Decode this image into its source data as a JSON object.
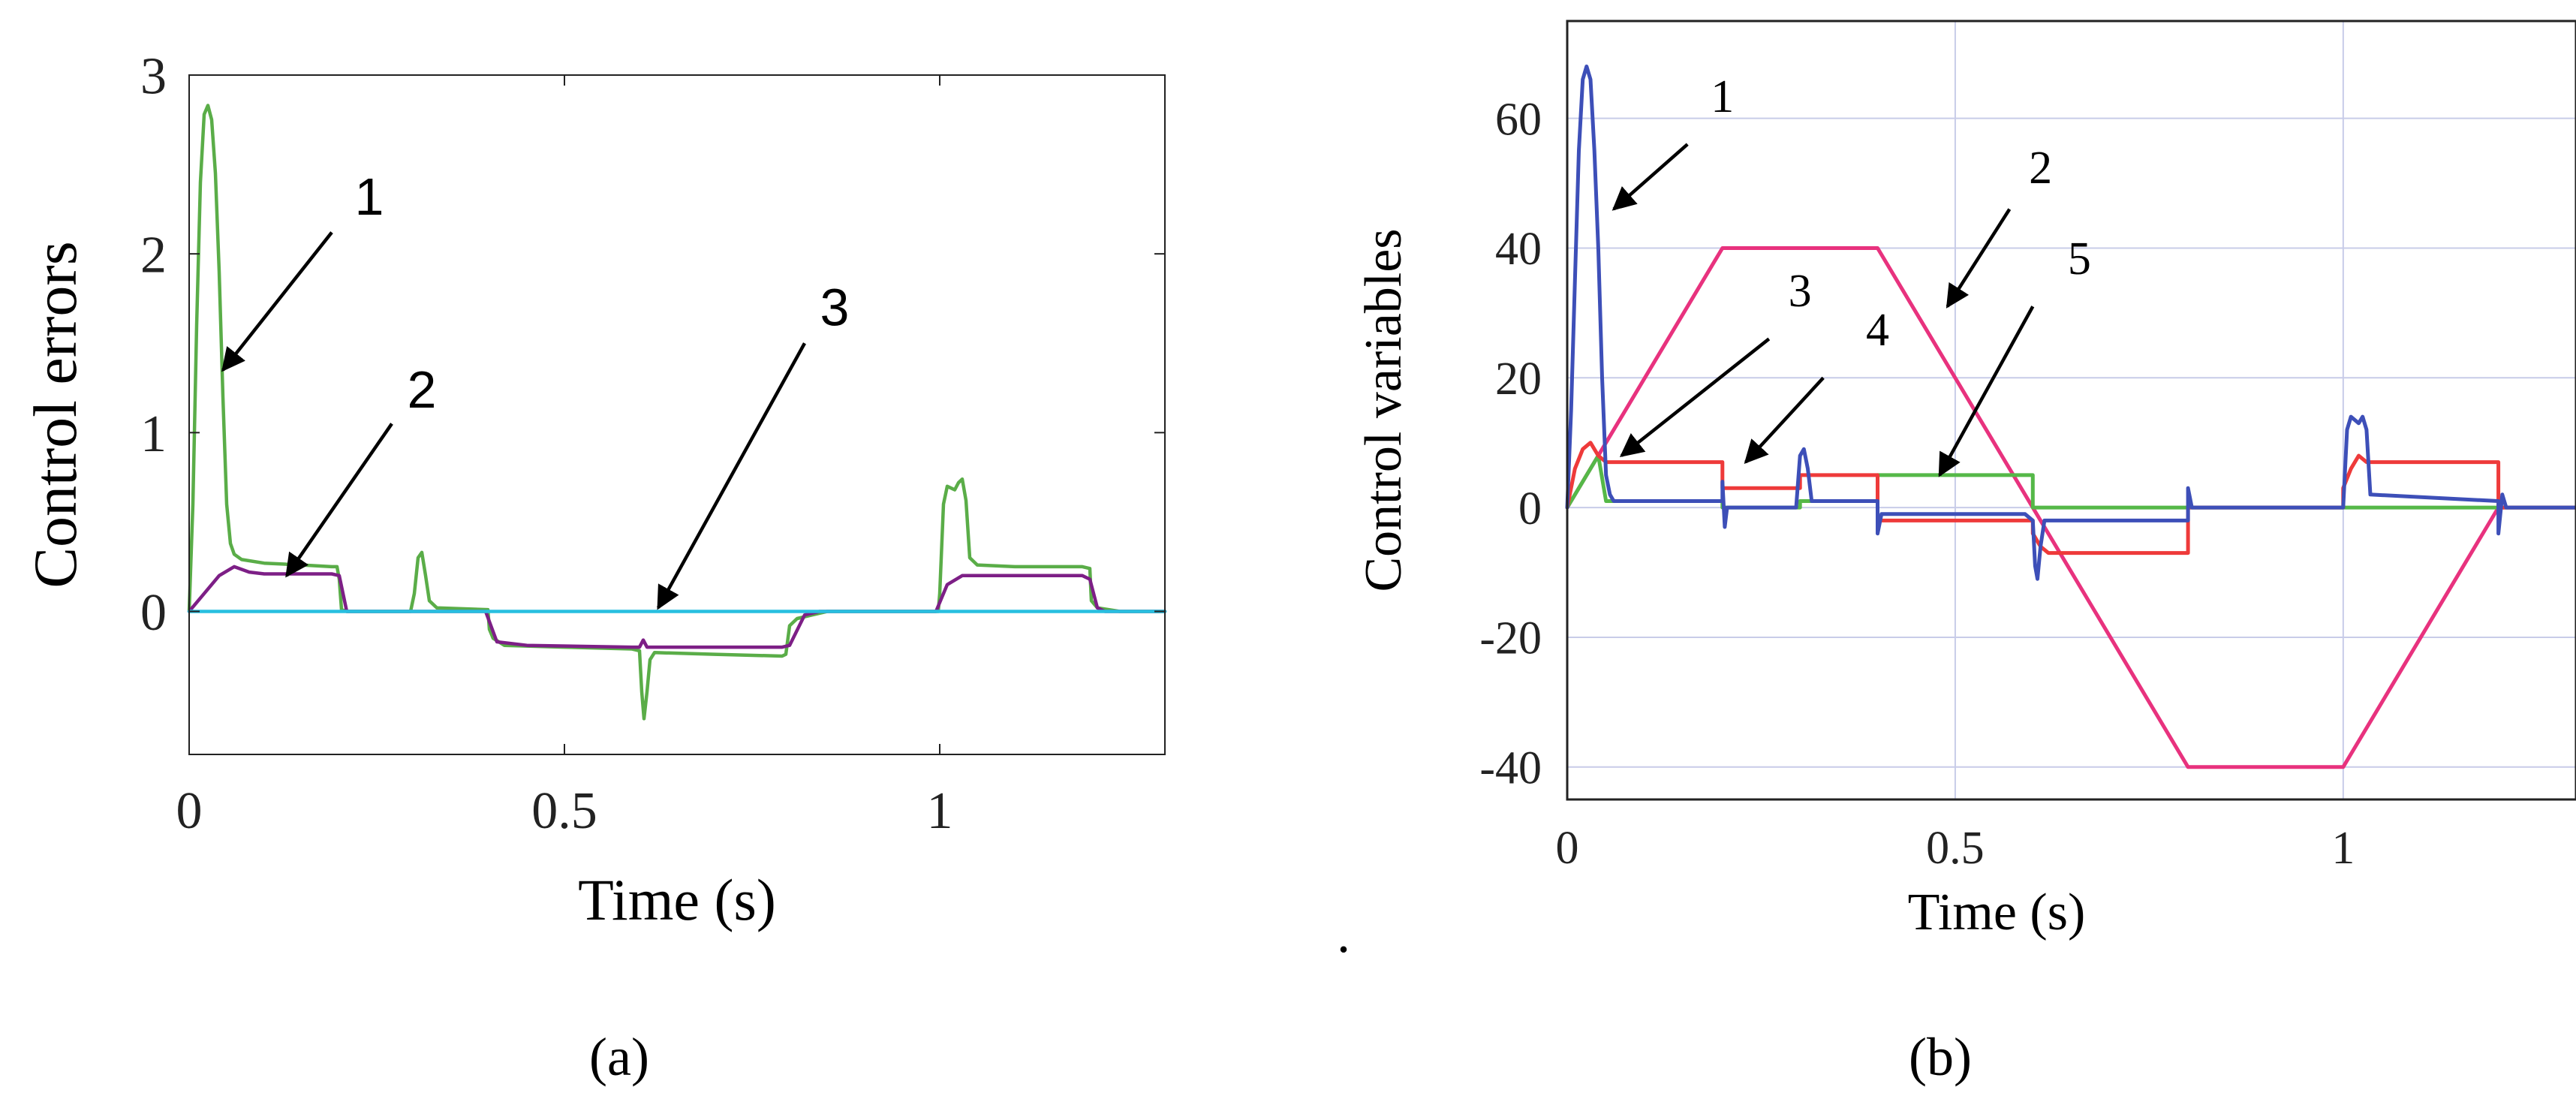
{
  "colors": {
    "green": "#5aad48",
    "purple": "#7d1f86",
    "cyan": "#28bfe0",
    "blue_a": "#3a5fc8",
    "blue_b": "#3d4fb8",
    "red": "#ee3a3a",
    "green_b": "#55b848",
    "magenta": "#e8327e",
    "grid_b": "#c8cce8",
    "frame": "#222222"
  },
  "chart_data": [
    {
      "panel": "a",
      "type": "line",
      "panel_label": "(a)",
      "xlabel": "Time (s)",
      "ylabel": "Control errors",
      "xlim": [
        0,
        1.3
      ],
      "ylim": [
        -0.8,
        3
      ],
      "x_ticks": [
        {
          "value": 0,
          "label": "0"
        },
        {
          "value": 0.5,
          "label": "0.5"
        },
        {
          "value": 1,
          "label": "1"
        }
      ],
      "y_ticks": [
        {
          "value": 0,
          "label": "0"
        },
        {
          "value": 1,
          "label": "1"
        },
        {
          "value": 2,
          "label": "2"
        },
        {
          "value": 3,
          "label": "3"
        }
      ],
      "grid": false,
      "series": [
        {
          "color": "#5aad48",
          "points": [
            [
              0,
              0
            ],
            [
              0.005,
              0.6
            ],
            [
              0.01,
              1.6
            ],
            [
              0.015,
              2.4
            ],
            [
              0.02,
              2.78
            ],
            [
              0.025,
              2.83
            ],
            [
              0.03,
              2.75
            ],
            [
              0.035,
              2.45
            ],
            [
              0.04,
              1.9
            ],
            [
              0.045,
              1.2
            ],
            [
              0.05,
              0.6
            ],
            [
              0.055,
              0.38
            ],
            [
              0.06,
              0.32
            ],
            [
              0.07,
              0.29
            ],
            [
              0.1,
              0.27
            ],
            [
              0.15,
              0.26
            ],
            [
              0.19,
              0.25
            ],
            [
              0.197,
              0.25
            ],
            [
              0.2,
              0.18
            ],
            [
              0.203,
              0.01
            ],
            [
              0.21,
              0
            ],
            [
              0.295,
              0
            ],
            [
              0.3,
              0.1
            ],
            [
              0.305,
              0.3
            ],
            [
              0.31,
              0.33
            ],
            [
              0.315,
              0.2
            ],
            [
              0.32,
              0.06
            ],
            [
              0.33,
              0.02
            ],
            [
              0.398,
              0.01
            ],
            [
              0.4,
              -0.1
            ],
            [
              0.405,
              -0.15
            ],
            [
              0.42,
              -0.19
            ],
            [
              0.5,
              -0.2
            ],
            [
              0.59,
              -0.21
            ],
            [
              0.6,
              -0.22
            ],
            [
              0.603,
              -0.45
            ],
            [
              0.606,
              -0.6
            ],
            [
              0.61,
              -0.45
            ],
            [
              0.614,
              -0.27
            ],
            [
              0.62,
              -0.23
            ],
            [
              0.7,
              -0.24
            ],
            [
              0.79,
              -0.25
            ],
            [
              0.795,
              -0.24
            ],
            [
              0.8,
              -0.08
            ],
            [
              0.81,
              -0.04
            ],
            [
              0.83,
              -0.02
            ],
            [
              0.85,
              0
            ],
            [
              0.998,
              0
            ],
            [
              1,
              0.1
            ],
            [
              1.005,
              0.6
            ],
            [
              1.01,
              0.7
            ],
            [
              1.02,
              0.68
            ],
            [
              1.025,
              0.72
            ],
            [
              1.03,
              0.74
            ],
            [
              1.035,
              0.62
            ],
            [
              1.04,
              0.3
            ],
            [
              1.05,
              0.26
            ],
            [
              1.1,
              0.25
            ],
            [
              1.19,
              0.25
            ],
            [
              1.2,
              0.24
            ],
            [
              1.202,
              0.06
            ],
            [
              1.21,
              0.02
            ],
            [
              1.24,
              0
            ],
            [
              1.3,
              0
            ]
          ]
        },
        {
          "color": "#7d1f86",
          "points": [
            [
              0,
              0
            ],
            [
              0.02,
              0.1
            ],
            [
              0.04,
              0.2
            ],
            [
              0.06,
              0.25
            ],
            [
              0.08,
              0.22
            ],
            [
              0.1,
              0.21
            ],
            [
              0.19,
              0.21
            ],
            [
              0.2,
              0.2
            ],
            [
              0.21,
              0
            ],
            [
              0.395,
              0
            ],
            [
              0.41,
              -0.17
            ],
            [
              0.45,
              -0.19
            ],
            [
              0.59,
              -0.2
            ],
            [
              0.6,
              -0.2
            ],
            [
              0.605,
              -0.16
            ],
            [
              0.61,
              -0.2
            ],
            [
              0.79,
              -0.2
            ],
            [
              0.8,
              -0.19
            ],
            [
              0.82,
              -0.02
            ],
            [
              0.84,
              0
            ],
            [
              0.995,
              0
            ],
            [
              1.01,
              0.15
            ],
            [
              1.03,
              0.2
            ],
            [
              1.19,
              0.2
            ],
            [
              1.2,
              0.18
            ],
            [
              1.21,
              0.02
            ],
            [
              1.22,
              0
            ],
            [
              1.3,
              0
            ]
          ]
        },
        {
          "color": "#28bfe0",
          "points": [
            [
              0,
              0
            ],
            [
              1.3,
              0
            ]
          ]
        }
      ],
      "annotations": [
        {
          "text": "1",
          "label_at": [
            0.24,
            2.22
          ],
          "arrow_from": [
            0.19,
            2.12
          ],
          "arrow_to": [
            0.045,
            1.35
          ]
        },
        {
          "text": "2",
          "label_at": [
            0.31,
            1.14
          ],
          "arrow_from": [
            0.27,
            1.05
          ],
          "arrow_to": [
            0.13,
            0.2
          ]
        },
        {
          "text": "3",
          "label_at": [
            0.86,
            1.6
          ],
          "arrow_from": [
            0.82,
            1.5
          ],
          "arrow_to": [
            0.625,
            0.02
          ]
        }
      ]
    },
    {
      "panel": "b",
      "type": "line",
      "panel_label": "(b)",
      "xlabel": "Time (s)",
      "ylabel": "Control variables",
      "xlim": [
        0,
        1.3
      ],
      "ylim": [
        -45,
        75
      ],
      "x_ticks": [
        {
          "value": 0,
          "label": "0"
        },
        {
          "value": 0.5,
          "label": "0.5"
        },
        {
          "value": 1,
          "label": "1"
        }
      ],
      "y_ticks": [
        {
          "value": -40,
          "label": "-40"
        },
        {
          "value": -20,
          "label": "-20"
        },
        {
          "value": 0,
          "label": "0"
        },
        {
          "value": 20,
          "label": "20"
        },
        {
          "value": 40,
          "label": "40"
        },
        {
          "value": 60,
          "label": "60"
        }
      ],
      "grid": true,
      "series": [
        {
          "color": "#e8327e",
          "points": [
            [
              0,
              0
            ],
            [
              0.2,
              40
            ],
            [
              0.4,
              40
            ],
            [
              0.8,
              -40
            ],
            [
              1,
              -40
            ],
            [
              1.2,
              0
            ],
            [
              1.3,
              0
            ]
          ]
        },
        {
          "color": "#55b848",
          "points": [
            [
              0,
              0
            ],
            [
              0.04,
              8
            ],
            [
              0.05,
              1
            ],
            [
              0.2,
              1
            ],
            [
              0.2,
              0
            ],
            [
              0.3,
              0
            ],
            [
              0.3,
              1
            ],
            [
              0.4,
              1
            ],
            [
              0.4,
              5
            ],
            [
              0.6,
              5
            ],
            [
              0.6,
              0
            ],
            [
              1.3,
              0
            ]
          ]
        },
        {
          "color": "#ee3a3a",
          "points": [
            [
              0,
              0
            ],
            [
              0.01,
              6
            ],
            [
              0.02,
              9
            ],
            [
              0.03,
              10
            ],
            [
              0.04,
              8
            ],
            [
              0.05,
              7
            ],
            [
              0.2,
              7
            ],
            [
              0.2,
              3
            ],
            [
              0.3,
              3
            ],
            [
              0.3,
              5
            ],
            [
              0.4,
              5
            ],
            [
              0.4,
              -2
            ],
            [
              0.6,
              -2
            ],
            [
              0.6,
              -4
            ],
            [
              0.61,
              -6
            ],
            [
              0.62,
              -7
            ],
            [
              0.8,
              -7
            ],
            [
              0.8,
              0
            ],
            [
              1.0,
              0
            ],
            [
              1.0,
              3
            ],
            [
              1.01,
              6
            ],
            [
              1.02,
              8
            ],
            [
              1.03,
              7
            ],
            [
              1.2,
              7
            ],
            [
              1.2,
              0
            ],
            [
              1.3,
              0
            ]
          ]
        },
        {
          "color": "#3d4fb8",
          "points": [
            [
              0,
              0
            ],
            [
              0.005,
              15
            ],
            [
              0.01,
              35
            ],
            [
              0.015,
              55
            ],
            [
              0.02,
              66
            ],
            [
              0.025,
              68
            ],
            [
              0.03,
              66
            ],
            [
              0.035,
              55
            ],
            [
              0.04,
              40
            ],
            [
              0.045,
              20
            ],
            [
              0.05,
              5
            ],
            [
              0.055,
              2
            ],
            [
              0.06,
              1
            ],
            [
              0.2,
              1
            ],
            [
              0.2,
              4
            ],
            [
              0.203,
              -3
            ],
            [
              0.206,
              0
            ],
            [
              0.295,
              0
            ],
            [
              0.3,
              8
            ],
            [
              0.305,
              9
            ],
            [
              0.31,
              6
            ],
            [
              0.315,
              1
            ],
            [
              0.4,
              1
            ],
            [
              0.4,
              -4
            ],
            [
              0.405,
              -1
            ],
            [
              0.59,
              -1
            ],
            [
              0.6,
              -2
            ],
            [
              0.603,
              -9
            ],
            [
              0.606,
              -11
            ],
            [
              0.61,
              -6
            ],
            [
              0.615,
              -2
            ],
            [
              0.8,
              -2
            ],
            [
              0.8,
              3
            ],
            [
              0.805,
              0
            ],
            [
              1.0,
              0
            ],
            [
              1.005,
              12
            ],
            [
              1.01,
              14
            ],
            [
              1.02,
              13
            ],
            [
              1.025,
              14
            ],
            [
              1.03,
              12
            ],
            [
              1.035,
              2
            ],
            [
              1.2,
              1
            ],
            [
              1.2,
              -4
            ],
            [
              1.205,
              2
            ],
            [
              1.21,
              0
            ],
            [
              1.3,
              0
            ]
          ]
        }
      ],
      "annotations": [
        {
          "text": "1",
          "label_at": [
            0.2,
            61
          ],
          "arrow_from": [
            0.155,
            56
          ],
          "arrow_to": [
            0.06,
            46
          ]
        },
        {
          "text": "2",
          "label_at": [
            0.61,
            50
          ],
          "arrow_from": [
            0.57,
            46
          ],
          "arrow_to": [
            0.49,
            31
          ]
        },
        {
          "text": "3",
          "label_at": [
            0.3,
            31
          ],
          "arrow_from": [
            0.26,
            26
          ],
          "arrow_to": [
            0.07,
            8
          ]
        },
        {
          "text": "4",
          "label_at": [
            0.4,
            25
          ],
          "arrow_from": [
            0.33,
            20
          ],
          "arrow_to": [
            0.23,
            7
          ]
        },
        {
          "text": "5",
          "label_at": [
            0.66,
            36
          ],
          "arrow_from": [
            0.6,
            31
          ],
          "arrow_to": [
            0.48,
            5
          ]
        }
      ]
    }
  ],
  "separator": "."
}
